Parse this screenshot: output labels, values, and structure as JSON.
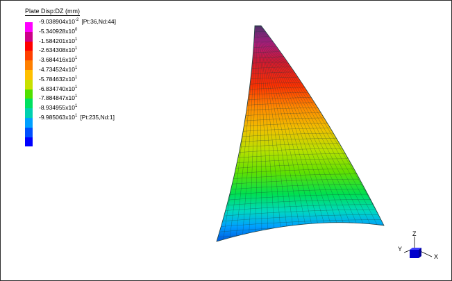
{
  "legend": {
    "title": "Plate Disp:DZ  (mm)",
    "colors": [
      "#ff00ff",
      "#cc0088",
      "#ff0000",
      "#ff4000",
      "#ff8000",
      "#ffc000",
      "#c8e000",
      "#50e000",
      "#00e060",
      "#00d0b0",
      "#00a0ff",
      "#0050ff",
      "#0000ff"
    ],
    "values": [
      {
        "mantissa": "-9.038904x10",
        "exp": "-2",
        "note": "[Pt:36,Nd:44]"
      },
      {
        "mantissa": "-5.340928x10",
        "exp": "0",
        "note": ""
      },
      {
        "mantissa": "-1.584201x10",
        "exp": "1",
        "note": ""
      },
      {
        "mantissa": "-2.634308x10",
        "exp": "1",
        "note": ""
      },
      {
        "mantissa": "-3.684416x10",
        "exp": "1",
        "note": ""
      },
      {
        "mantissa": "-4.734524x10",
        "exp": "1",
        "note": ""
      },
      {
        "mantissa": "-5.784632x10",
        "exp": "1",
        "note": ""
      },
      {
        "mantissa": "-6.834740x10",
        "exp": "1",
        "note": ""
      },
      {
        "mantissa": "-7.884847x10",
        "exp": "1",
        "note": ""
      },
      {
        "mantissa": "-8.934955x10",
        "exp": "1",
        "note": ""
      },
      {
        "mantissa": "-9.985063x10",
        "exp": "1",
        "note": "[Pt:235,Nd:1]"
      }
    ]
  },
  "triad": {
    "x": "X",
    "y": "Y",
    "z": "Z",
    "cube_color": "#0000cc"
  }
}
